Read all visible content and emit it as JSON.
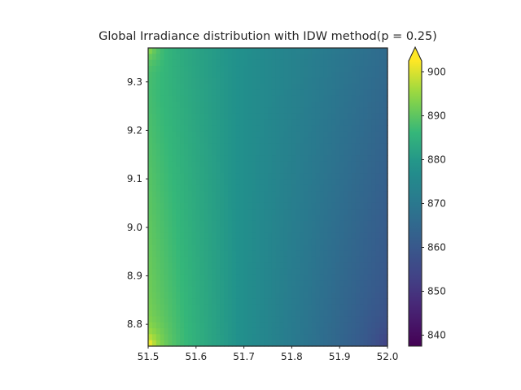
{
  "chart_data": {
    "type": "heatmap",
    "title": "Global Irradiance distribution with IDW method(p = 0.25)",
    "xlabel": "",
    "ylabel": "",
    "x_range": [
      51.5,
      52.0
    ],
    "y_range": [
      8.755,
      9.37
    ],
    "x_ticks": [
      51.5,
      51.6,
      51.7,
      51.8,
      51.9,
      52.0
    ],
    "x_tick_labels": [
      "51.5",
      "51.6",
      "51.7",
      "51.8",
      "51.9",
      "52.0"
    ],
    "y_ticks": [
      8.8,
      8.9,
      9.0,
      9.1,
      9.2,
      9.3
    ],
    "y_tick_labels": [
      "8.8",
      "8.9",
      "9.0",
      "9.1",
      "9.2",
      "9.3"
    ],
    "colormap": "viridis",
    "colorbar": {
      "range": [
        837.5,
        902.5
      ],
      "extend": "max",
      "ticks": [
        840,
        850,
        860,
        870,
        880,
        890,
        900
      ],
      "tick_labels": [
        "840",
        "850",
        "860",
        "870",
        "880",
        "890",
        "900"
      ]
    },
    "field": {
      "description_values": "approximate irradiance at grid corners",
      "corners": {
        "bottom_left": 893,
        "top_left": 887,
        "top_right": 866,
        "bottom_right": 858
      },
      "left_edge_mid": 881,
      "right_edge_mid": 866
    },
    "grid": false
  }
}
